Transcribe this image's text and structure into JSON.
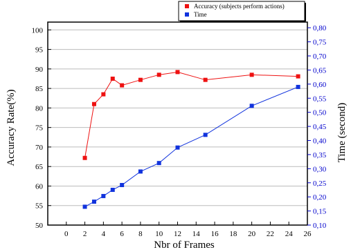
{
  "chart_data": {
    "type": "line",
    "title": "",
    "xlabel": "Nbr of Frames",
    "ylabel": "Accuracy Rate(%)",
    "ylabel_right": "Time (second)",
    "xlim": [
      -2,
      26
    ],
    "ylim": [
      50,
      102
    ],
    "ylim_right": [
      0.1,
      0.82
    ],
    "x_ticks": [
      0,
      2,
      4,
      6,
      8,
      10,
      12,
      14,
      16,
      18,
      20,
      22,
      24,
      26
    ],
    "y_ticks_left": [
      50,
      55,
      60,
      65,
      70,
      75,
      80,
      85,
      90,
      95,
      100
    ],
    "y_ticks_right": [
      "0,10",
      "0,15",
      "0,20",
      "0,25",
      "0,30",
      "0,35",
      "0,40",
      "0,45",
      "0,50",
      "0,55",
      "0,60",
      "0,65",
      "0,70",
      "0,75",
      "0,80"
    ],
    "grid": true,
    "legend_position": "top-right",
    "series": [
      {
        "name": "Accuracy (subjects perform actions)",
        "axis": "left",
        "color": "#ee1111",
        "marker": "square",
        "x": [
          2,
          3,
          4,
          5,
          6,
          8,
          10,
          12,
          15,
          20,
          25
        ],
        "y": [
          67.2,
          81.0,
          83.5,
          87.5,
          85.8,
          87.2,
          88.5,
          89.2,
          87.2,
          88.5,
          88.1
        ]
      },
      {
        "name": "Time",
        "axis": "right",
        "color": "#1133dd",
        "marker": "square",
        "x": [
          2,
          3,
          4,
          5,
          6,
          8,
          10,
          12,
          15,
          20,
          25
        ],
        "y": [
          0.165,
          0.183,
          0.203,
          0.225,
          0.242,
          0.29,
          0.32,
          0.375,
          0.42,
          0.523,
          0.59
        ]
      }
    ]
  }
}
